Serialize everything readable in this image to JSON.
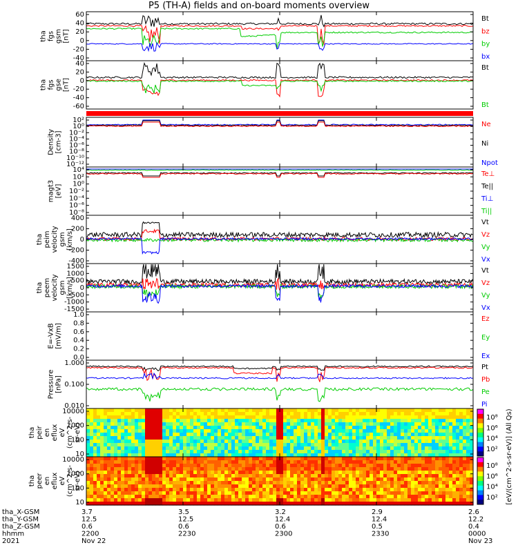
{
  "title": "P5 (TH-A) fields and on-board moments overview",
  "colors": {
    "black": "#000000",
    "red": "#ff0000",
    "green": "#00cc00",
    "blue": "#0000ff"
  },
  "chart_data": [
    {
      "type": "line",
      "ylabel_lines": [
        "tha",
        "fgs",
        "gsm",
        "[nT]"
      ],
      "yticks": [
        "60",
        "40",
        "20",
        "0",
        "-20",
        "-40"
      ],
      "legend": [
        {
          "name": "Bt",
          "color": "#000000"
        },
        {
          "name": "bz",
          "color": "#ff0000"
        },
        {
          "name": "by",
          "color": "#00cc00"
        },
        {
          "name": "bx",
          "color": "#0000ff"
        }
      ]
    },
    {
      "type": "line",
      "ylabel_lines": [
        "tha",
        "fgs",
        "gse",
        "[nT]"
      ],
      "yticks": [
        "40",
        "20",
        "0",
        "-20",
        "-40",
        "-60"
      ],
      "legend": [
        {
          "name": "Bt",
          "color": "#000000"
        },
        {
          "name": "Bt",
          "color": "#00cc00"
        }
      ]
    },
    {
      "type": "line",
      "ylabel_lines": [
        "Density",
        "[cm-3]"
      ],
      "yticks": [
        "10²",
        "10⁰",
        "10⁻²",
        "10⁻⁴",
        "10⁻⁶",
        "10⁻⁸",
        "10⁻¹⁰",
        "10⁻¹²"
      ],
      "legend": [
        {
          "name": "Ne",
          "color": "#ff0000"
        },
        {
          "name": "Ni",
          "color": "#000000"
        },
        {
          "name": "Npot",
          "color": "#0000ff"
        }
      ]
    },
    {
      "type": "line",
      "ylabel_lines": [
        "magt3",
        "[eV]"
      ],
      "yticks": [
        "10⁴",
        "10²",
        "10⁰",
        "10⁻²",
        "10⁻⁴",
        "10⁻⁶",
        "10⁻⁸"
      ],
      "legend": [
        {
          "name": "Te⊥",
          "color": "#ff0000"
        },
        {
          "name": "Te||",
          "color": "#000000"
        },
        {
          "name": "Ti⊥",
          "color": "#0000ff"
        },
        {
          "name": "Ti||",
          "color": "#00cc00"
        }
      ]
    },
    {
      "type": "line",
      "ylabel_lines": [
        "tha",
        "peim",
        "velocity",
        "gsm",
        "[km/s]"
      ],
      "yticks": [
        "400",
        "200",
        "0",
        "-200",
        "-400"
      ],
      "legend": [
        {
          "name": "Vt",
          "color": "#000000"
        },
        {
          "name": "Vz",
          "color": "#ff0000"
        },
        {
          "name": "Vy",
          "color": "#00cc00"
        },
        {
          "name": "Vx",
          "color": "#0000ff"
        }
      ]
    },
    {
      "type": "line",
      "ylabel_lines": [
        "tha",
        "peem",
        "velocity",
        "gsm",
        "[km/s]"
      ],
      "yticks": [
        "1500",
        "1000",
        "500",
        "0",
        "-500",
        "-1000",
        "-1500"
      ],
      "legend": [
        {
          "name": "Vt",
          "color": "#000000"
        },
        {
          "name": "Vz",
          "color": "#ff0000"
        },
        {
          "name": "Vy",
          "color": "#00cc00"
        },
        {
          "name": "Vx",
          "color": "#0000ff"
        }
      ]
    },
    {
      "type": "line",
      "ylabel_lines": [
        "E=-VxB",
        "[mV/m]"
      ],
      "yticks": [
        "1.0",
        "0.8",
        "0.6",
        "0.4",
        "0.2",
        "0.0"
      ],
      "legend": [
        {
          "name": "Ez",
          "color": "#ff0000"
        },
        {
          "name": "Ey",
          "color": "#00cc00"
        },
        {
          "name": "Ex",
          "color": "#0000ff"
        }
      ]
    },
    {
      "type": "line",
      "ylabel_lines": [
        "Pressure",
        "[nPa]"
      ],
      "yticks": [
        "1.000",
        "0.100",
        "0.010"
      ],
      "legend": [
        {
          "name": "Pt",
          "color": "#000000"
        },
        {
          "name": "Pb",
          "color": "#ff0000"
        },
        {
          "name": "Pe",
          "color": "#00cc00"
        },
        {
          "name": "Pi",
          "color": "#0000ff"
        }
      ]
    },
    {
      "type": "heatmap",
      "ylabel_lines": [
        "tha",
        "peir",
        "en",
        "eflux",
        "eV",
        "(cm^2-s-",
        "sr-eV)"
      ],
      "yticks": [
        "10000",
        "1000",
        "100",
        "10"
      ],
      "colorbar_ticks": [
        "10⁸",
        "10⁶",
        "10⁴",
        "10²"
      ]
    },
    {
      "type": "heatmap",
      "ylabel_lines": [
        "tha",
        "peer",
        "en",
        "eflux",
        "eV",
        "(cm^2-s-",
        "sr-eV)"
      ],
      "yticks": [
        "10000",
        "1000",
        "100",
        "10"
      ],
      "colorbar_ticks": [
        "10⁸",
        "10⁶",
        "10⁴",
        "10²"
      ]
    }
  ],
  "colorbar_label": "[eV/(cm^2-s-sr-eV)] (All Qs)",
  "xaxis": {
    "row_labels": [
      "tha_X-GSM",
      "tha_Y-GSM",
      "tha_Z-GSM",
      "hhmm",
      "2021"
    ],
    "columns": [
      {
        "values": [
          "3.7",
          "12.5",
          "0.6",
          "2200",
          "Nov 22"
        ]
      },
      {
        "values": [
          "3.5",
          "12.5",
          "0.6",
          "2230",
          ""
        ]
      },
      {
        "values": [
          "3.2",
          "12.4",
          "0.6",
          "2300",
          ""
        ]
      },
      {
        "values": [
          "2.9",
          "12.4",
          "0.5",
          "2330",
          ""
        ]
      },
      {
        "values": [
          "2.6",
          "12.2",
          "0.4",
          "0000",
          "Nov 23"
        ]
      }
    ]
  }
}
